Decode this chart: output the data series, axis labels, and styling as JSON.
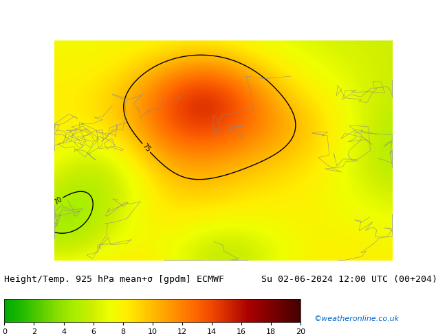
{
  "title_left": "Height/Temp. 925 hPa mean+σ [gpdm] ECMWF",
  "title_right": "Su 02-06-2024 12:00 UTC (00+204)",
  "colorbar_label": "",
  "colorbar_ticks": [
    0,
    2,
    4,
    6,
    8,
    10,
    12,
    14,
    16,
    18,
    20
  ],
  "colorbar_vmin": 0,
  "colorbar_vmax": 20,
  "watermark": "©weatheronline.co.uk",
  "watermark_color": "#0066cc",
  "bg_color": "#000000",
  "title_color": "#000000",
  "title_fontsize": 9.5,
  "colorbar_colors": [
    "#00aa00",
    "#22bb00",
    "#55cc00",
    "#88dd00",
    "#aaee00",
    "#ccee00",
    "#eeff00",
    "#ffee00",
    "#ffcc00",
    "#ffaa00",
    "#ff8800",
    "#ff6600",
    "#ee4400",
    "#cc2200",
    "#aa0000",
    "#880000",
    "#660000",
    "#440000"
  ],
  "map_image_placeholder": true,
  "fig_width": 6.34,
  "fig_height": 4.9,
  "dpi": 100
}
